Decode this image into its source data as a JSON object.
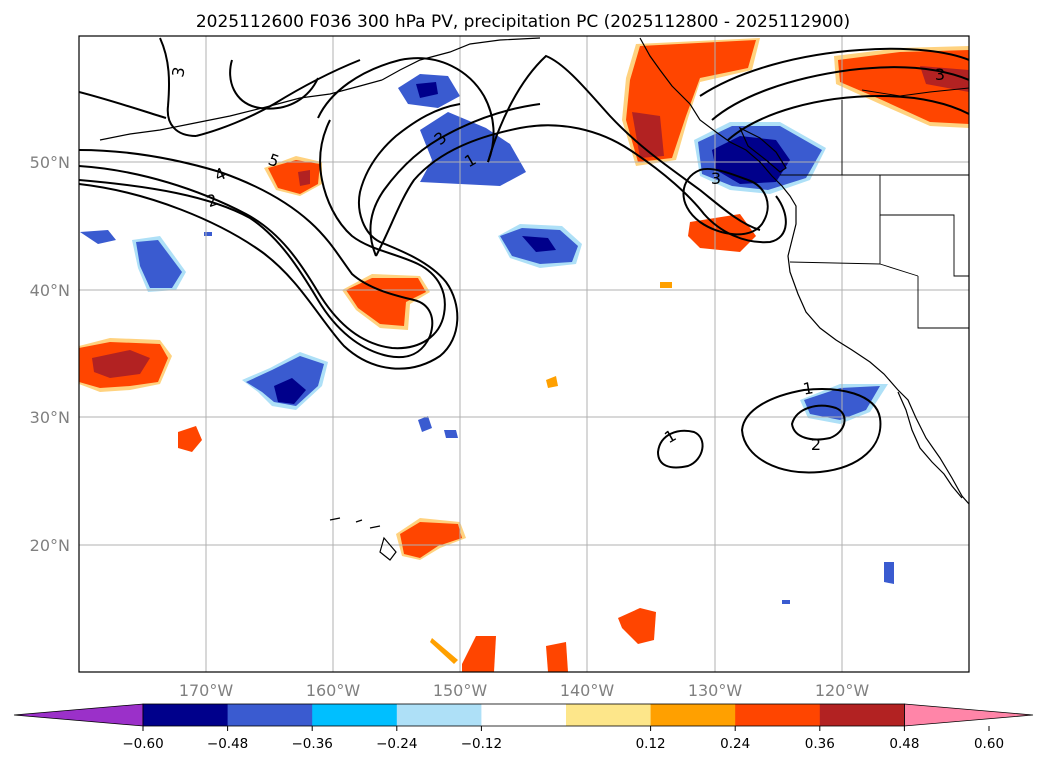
{
  "title": "2025112600 F036 300 hPa PV, precipitation PC (2025112800 - 2025112900)",
  "map": {
    "lon_range": [
      -180,
      -110
    ],
    "lat_range": [
      10,
      60
    ],
    "lat_labels": [
      "50°N",
      "40°N",
      "30°N",
      "20°N"
    ],
    "lon_labels": [
      "170°W",
      "160°W",
      "150°W",
      "140°W",
      "130°W",
      "120°W"
    ]
  },
  "chart_data": {
    "type": "filled-contour-map",
    "variable_shaded": "precipitation PC",
    "variable_contoured": "300 hPa PV",
    "contour_labels": [
      "3",
      "4",
      "5",
      "2",
      "3",
      "1",
      "3",
      "1",
      "2",
      "1",
      "3"
    ],
    "colorbar": {
      "ticks": [
        "−0.60",
        "−0.48",
        "−0.36",
        "−0.24",
        "−0.12",
        "0.12",
        "0.24",
        "0.36",
        "0.48",
        "0.60"
      ],
      "colors": [
        "#9b30c9",
        "#00008b",
        "#3a5bd0",
        "#00bfff",
        "#aee0f7",
        "#ffffff",
        "#fde68a",
        "#ffa000",
        "#ff4500",
        "#b22222",
        "#ff85a8"
      ]
    }
  }
}
